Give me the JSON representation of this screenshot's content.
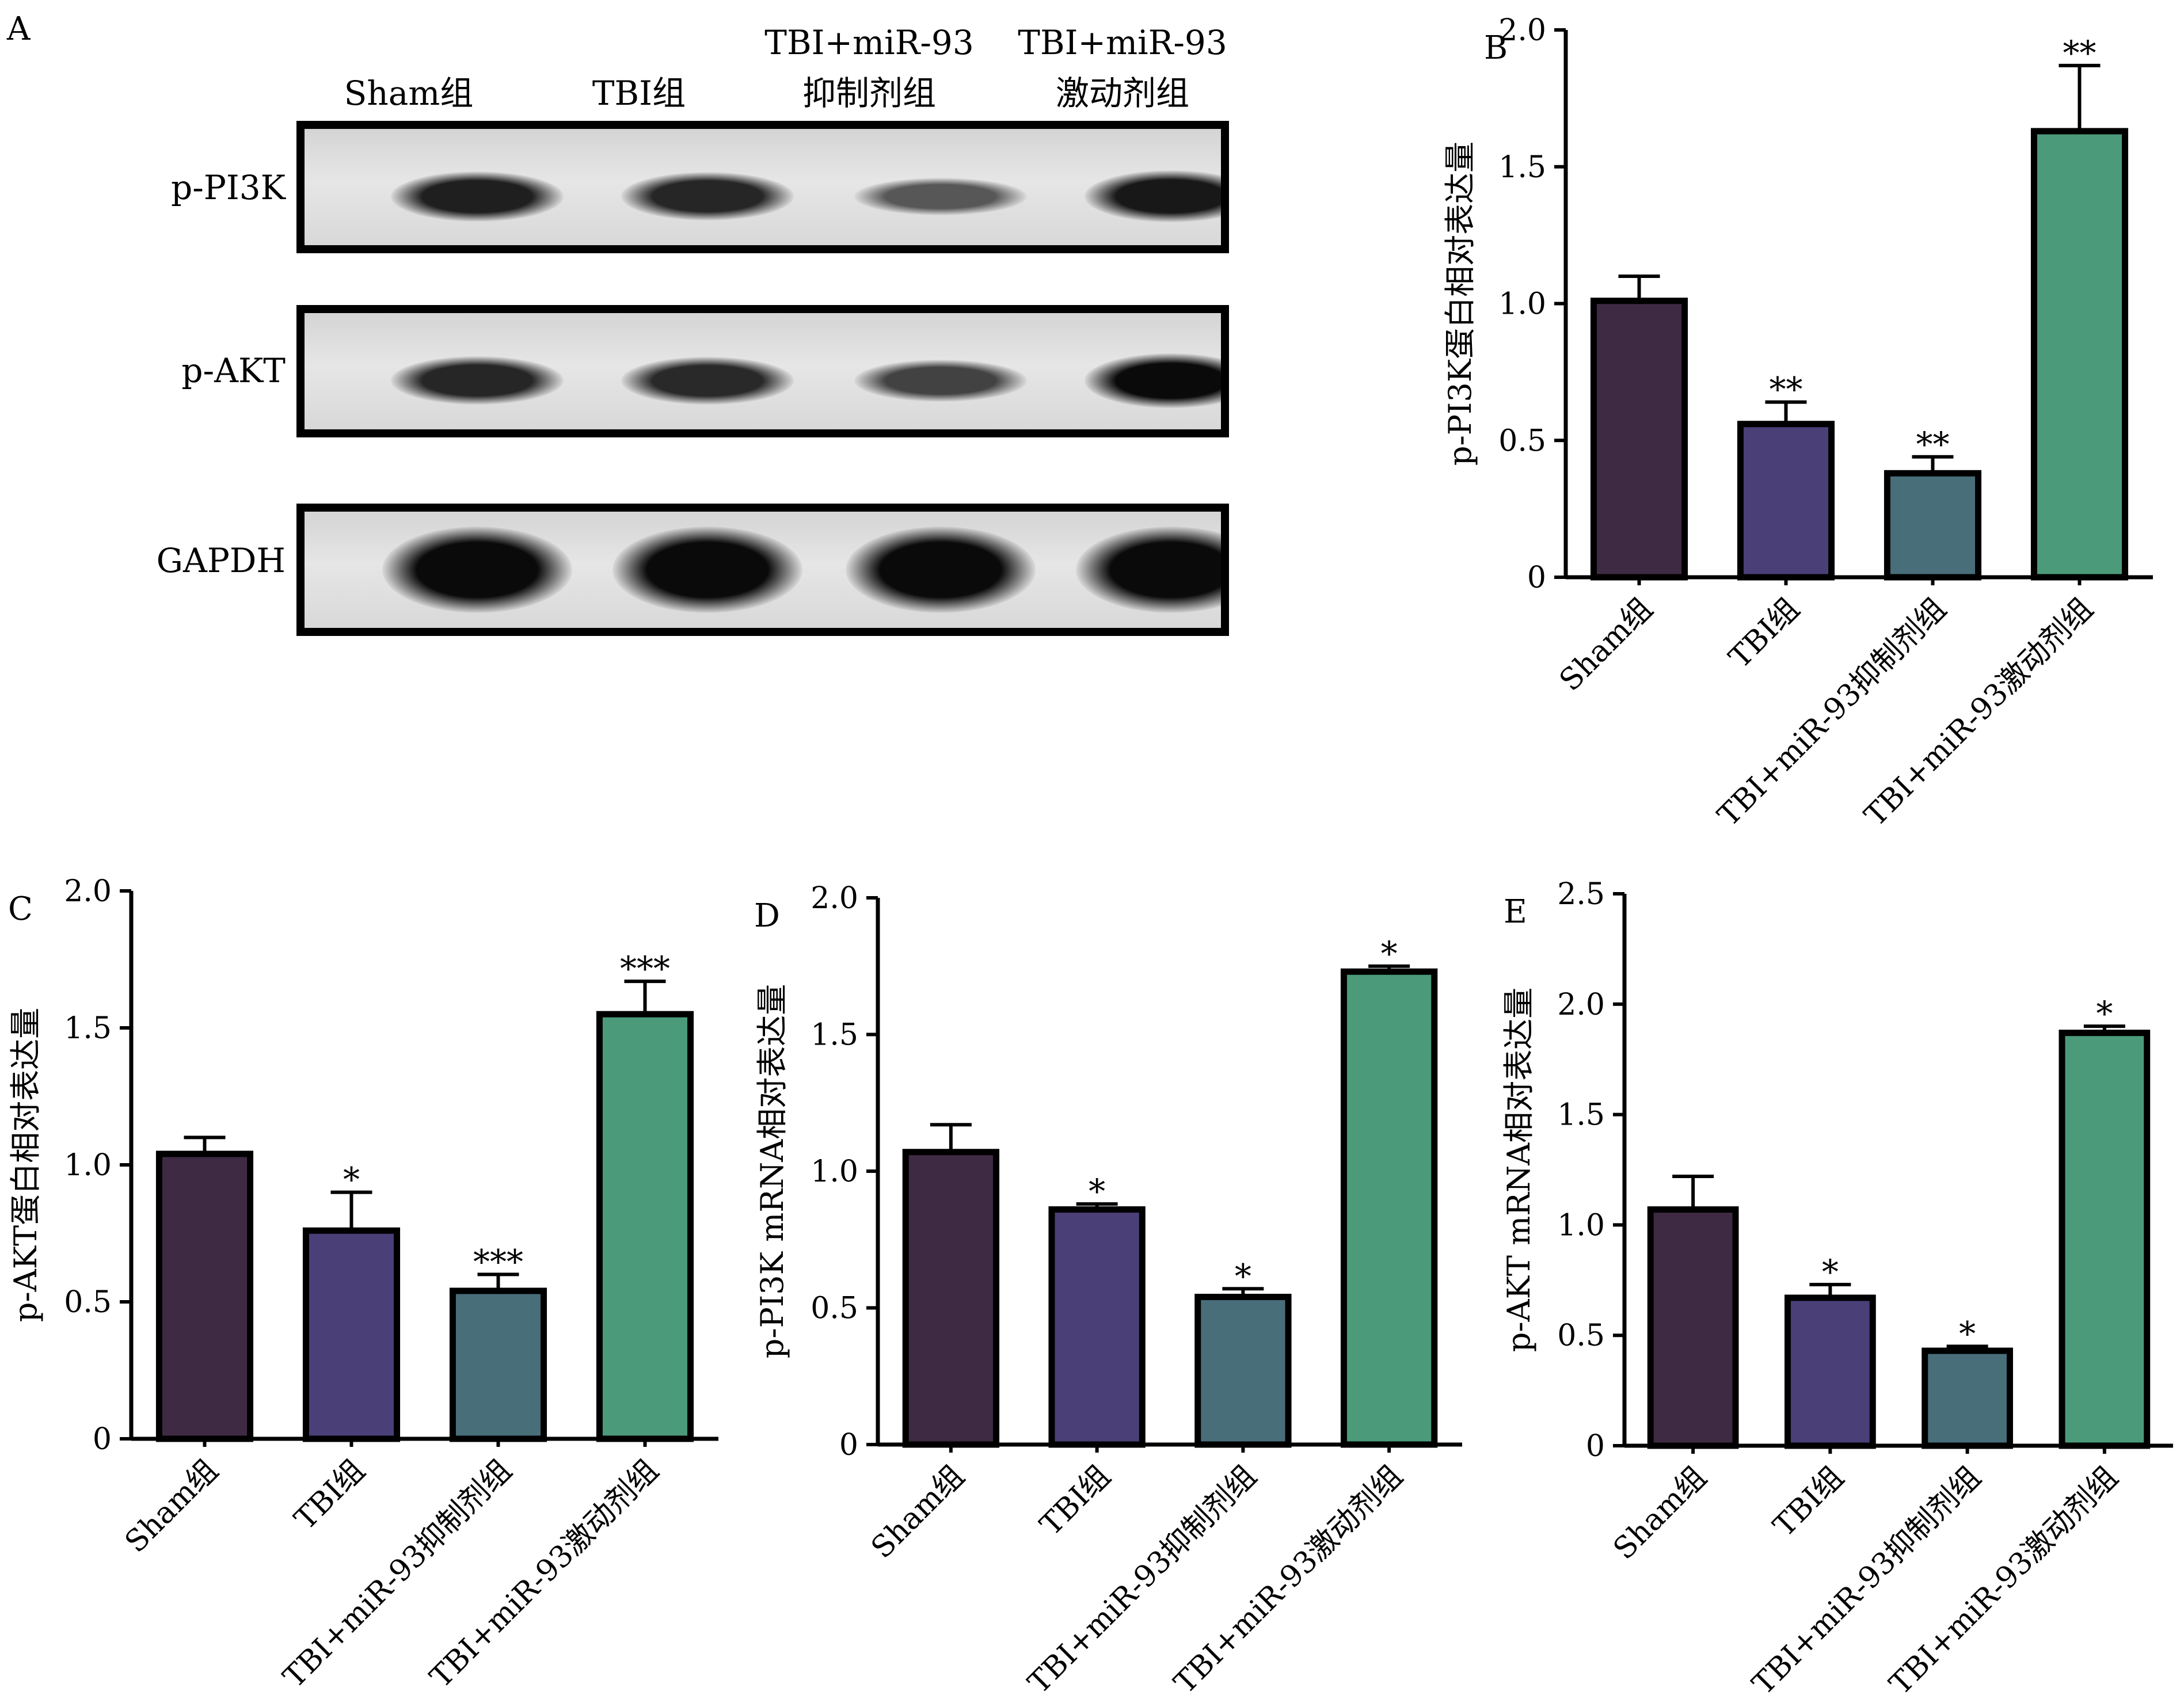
{
  "colors": {
    "sham": "#3f2a43",
    "tbi": "#4b3f78",
    "inhibitor": "#486e7a",
    "agonist": "#4b9a7a",
    "axis": "#000000"
  },
  "blot": {
    "letter": "A",
    "lanes": [
      "Sham组",
      "TBI组",
      "TBI+miR-93\n抑制剂组",
      "TBI+miR-93\n激动剂组"
    ],
    "bands": [
      {
        "name": "p-PI3K",
        "intensity": [
          0.85,
          0.8,
          0.45,
          0.9
        ]
      },
      {
        "name": "p-AKT",
        "intensity": [
          0.8,
          0.78,
          0.6,
          1.0
        ]
      },
      {
        "name": "GAPDH",
        "intensity": [
          1.0,
          1.0,
          1.0,
          1.0
        ]
      }
    ]
  },
  "chart_data": [
    {
      "letter": "B",
      "type": "bar",
      "categories": [
        "Sham组",
        "TBI组",
        "TBI+miR-93抑制剂组",
        "TBI+miR-93激动剂组"
      ],
      "values": [
        1.01,
        0.56,
        0.38,
        1.63
      ],
      "errors": [
        0.09,
        0.08,
        0.06,
        0.24
      ],
      "significance": [
        "",
        "**",
        "**",
        "**"
      ],
      "ylabel": "p-PI3K蛋白相对表达量",
      "ylim": [
        0,
        2.0
      ],
      "yticks": [
        "0",
        "0.5",
        "1.0",
        "1.5",
        "2.0"
      ]
    },
    {
      "letter": "C",
      "type": "bar",
      "categories": [
        "Sham组",
        "TBI组",
        "TBI+miR-93抑制剂组",
        "TBI+miR-93激动剂组"
      ],
      "values": [
        1.04,
        0.76,
        0.54,
        1.55
      ],
      "errors": [
        0.06,
        0.14,
        0.06,
        0.12
      ],
      "significance": [
        "",
        "*",
        "***",
        "***"
      ],
      "ylabel": "p-AKT蛋白相对表达量",
      "ylim": [
        0,
        2.0
      ],
      "yticks": [
        "0",
        "0.5",
        "1.0",
        "1.5",
        "2.0"
      ]
    },
    {
      "letter": "D",
      "type": "bar",
      "categories": [
        "Sham组",
        "TBI组",
        "TBI+miR-93抑制剂组",
        "TBI+miR-93激动剂组"
      ],
      "values": [
        1.07,
        0.86,
        0.54,
        1.73
      ],
      "errors": [
        0.1,
        0.02,
        0.03,
        0.02
      ],
      "significance": [
        "",
        "*",
        "*",
        "*"
      ],
      "ylabel": "p-PI3K mRNA相对表达量",
      "ylim": [
        0,
        2.0
      ],
      "yticks": [
        "0",
        "0.5",
        "1.0",
        "1.5",
        "2.0"
      ]
    },
    {
      "letter": "E",
      "type": "bar",
      "categories": [
        "Sham组",
        "TBI组",
        "TBI+miR-93抑制剂组",
        "TBI+miR-93激动剂组"
      ],
      "values": [
        1.07,
        0.67,
        0.43,
        1.87
      ],
      "errors": [
        0.15,
        0.06,
        0.02,
        0.03
      ],
      "significance": [
        "",
        "*",
        "*",
        "*"
      ],
      "ylabel": "p-AKT mRNA相对表达量",
      "ylim": [
        0,
        2.5
      ],
      "yticks": [
        "0",
        "0.5",
        "1.0",
        "1.5",
        "2.0",
        "2.5"
      ]
    }
  ]
}
